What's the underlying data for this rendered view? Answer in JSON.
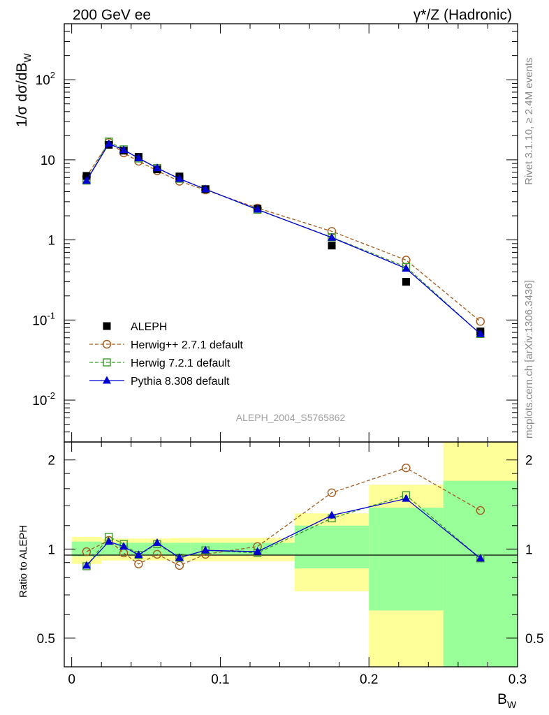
{
  "header": {
    "left_title": "200 GeV ee",
    "right_title": "γ*/Z (Hadronic)"
  },
  "side_text": {
    "rivet": "Rivet 3.1.10, ≥ 2.4M events",
    "mcplots": "mcplots.cern.ch [arXiv:1306.3436]"
  },
  "watermark": "ALEPH_2004_S5765862",
  "axes": {
    "main_ylabel": "1/σ dσ/dB",
    "main_ylabel_sub": "W",
    "ratio_ylabel": "Ratio to ALEPH",
    "xlabel": "B",
    "xlabel_sub": "W",
    "x_tick_labels": [
      "0",
      "0.1",
      "0.2",
      "0.3"
    ],
    "main_y_tick_labels": [
      "10",
      "10",
      "1",
      "10",
      "10"
    ],
    "main_y_tick_exponents": [
      "-2",
      "-1",
      "",
      "",
      "2"
    ],
    "ratio_y_tick_labels": [
      "0.5",
      "1",
      "2"
    ]
  },
  "colors": {
    "aleph": "#000000",
    "herwigpp": "#a65a1c",
    "herwig7": "#3c9a2e",
    "pythia": "#0000d0",
    "band_yellow": "#ffff99",
    "band_green": "#99ff99"
  },
  "chart_data": {
    "type": "scatter",
    "title": "200 GeV ee",
    "xlabel": "B_W",
    "ylabel": "1/σ dσ/dB_W",
    "xlim": [
      -0.005,
      0.3
    ],
    "ylim": [
      0.003,
      500
    ],
    "yscale": "log",
    "ratio_ylim": [
      0.4,
      2.3
    ],
    "ratio_yscale": "log",
    "legend_position": "lower-left",
    "bins": [
      [
        0.0,
        0.02
      ],
      [
        0.02,
        0.03
      ],
      [
        0.03,
        0.04
      ],
      [
        0.04,
        0.05
      ],
      [
        0.05,
        0.065
      ],
      [
        0.065,
        0.08
      ],
      [
        0.08,
        0.1
      ],
      [
        0.1,
        0.15
      ],
      [
        0.15,
        0.2
      ],
      [
        0.2,
        0.25
      ],
      [
        0.25,
        0.3
      ]
    ],
    "x": [
      0.01,
      0.025,
      0.035,
      0.045,
      0.0575,
      0.0725,
      0.09,
      0.125,
      0.175,
      0.225,
      0.275
    ],
    "series": [
      {
        "name": "ALEPH",
        "style": "filled-square",
        "values": [
          6.3,
          15.4,
          13.0,
          10.9,
          7.6,
          6.2,
          4.3,
          2.45,
          0.85,
          0.3,
          0.072
        ]
      },
      {
        "name": "Herwig++ 2.7.1 default",
        "style": "open-circle-dashed",
        "values": [
          6.2,
          16.5,
          12.2,
          9.6,
          7.3,
          5.4,
          4.2,
          2.5,
          1.28,
          0.56,
          0.096
        ],
        "ratio": [
          0.98,
          1.07,
          0.97,
          0.89,
          0.96,
          0.88,
          0.96,
          1.02,
          1.55,
          1.88,
          1.35
        ]
      },
      {
        "name": "Herwig 7.2.1 default",
        "style": "open-square-dashed",
        "values": [
          5.5,
          16.9,
          13.5,
          10.4,
          7.9,
          5.8,
          4.3,
          2.38,
          1.08,
          0.46,
          0.067
        ],
        "ratio": [
          0.875,
          1.1,
          1.04,
          0.955,
          1.04,
          0.935,
          0.99,
          0.97,
          1.27,
          1.52,
          0.93
        ]
      },
      {
        "name": "Pythia 8.308 default",
        "style": "filled-triangle-solid",
        "values": [
          5.5,
          15.9,
          13.3,
          10.5,
          7.9,
          5.8,
          4.3,
          2.4,
          1.07,
          0.44,
          0.067
        ],
        "ratio": [
          0.88,
          1.06,
          1.02,
          0.955,
          1.05,
          0.935,
          0.99,
          0.98,
          1.3,
          1.48,
          0.93
        ]
      }
    ],
    "ratio_bands": {
      "yellow": [
        [
          0.89,
          1.1
        ],
        [
          0.915,
          1.085
        ],
        [
          0.915,
          1.085
        ],
        [
          0.915,
          1.085
        ],
        [
          0.915,
          1.085
        ],
        [
          0.915,
          1.09
        ],
        [
          0.91,
          1.09
        ],
        [
          0.91,
          1.09
        ],
        [
          0.72,
          1.32
        ],
        [
          0.25,
          1.65
        ],
        [
          0.25,
          2.5
        ]
      ],
      "green": [
        [
          0.945,
          1.06
        ],
        [
          0.955,
          1.05
        ],
        [
          0.955,
          1.05
        ],
        [
          0.955,
          1.05
        ],
        [
          0.955,
          1.05
        ],
        [
          0.955,
          1.05
        ],
        [
          0.955,
          1.05
        ],
        [
          0.955,
          1.05
        ],
        [
          0.86,
          1.2
        ],
        [
          0.62,
          1.38
        ],
        [
          0.25,
          1.7
        ]
      ]
    }
  }
}
